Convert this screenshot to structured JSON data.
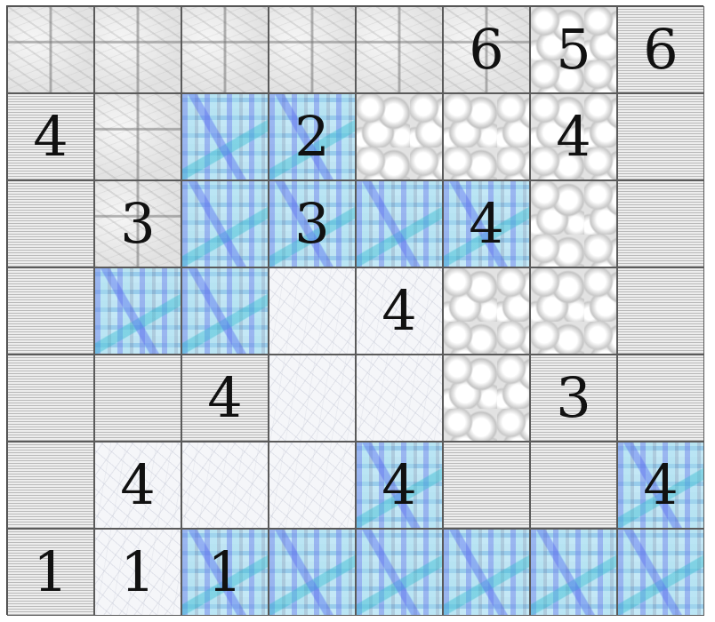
{
  "puzzle": {
    "rows": 7,
    "cols": 8,
    "textures": [
      "marble",
      "lines",
      "mosaic",
      "bumps",
      "frost"
    ],
    "grid": [
      [
        {
          "t": "marble",
          "n": ""
        },
        {
          "t": "marble",
          "n": ""
        },
        {
          "t": "marble",
          "n": ""
        },
        {
          "t": "marble",
          "n": ""
        },
        {
          "t": "marble",
          "n": ""
        },
        {
          "t": "marble",
          "n": "6"
        },
        {
          "t": "bumps",
          "n": "5"
        },
        {
          "t": "lines",
          "n": "6"
        }
      ],
      [
        {
          "t": "lines",
          "n": "4"
        },
        {
          "t": "marble",
          "n": ""
        },
        {
          "t": "mosaic",
          "n": ""
        },
        {
          "t": "mosaic",
          "n": "2"
        },
        {
          "t": "bumps",
          "n": ""
        },
        {
          "t": "bumps",
          "n": ""
        },
        {
          "t": "bumps",
          "n": "4"
        },
        {
          "t": "lines",
          "n": ""
        }
      ],
      [
        {
          "t": "lines",
          "n": ""
        },
        {
          "t": "marble",
          "n": "3"
        },
        {
          "t": "mosaic",
          "n": ""
        },
        {
          "t": "mosaic",
          "n": "3"
        },
        {
          "t": "mosaic",
          "n": ""
        },
        {
          "t": "mosaic",
          "n": "4"
        },
        {
          "t": "bumps",
          "n": ""
        },
        {
          "t": "lines",
          "n": ""
        }
      ],
      [
        {
          "t": "lines",
          "n": ""
        },
        {
          "t": "mosaic",
          "n": ""
        },
        {
          "t": "mosaic",
          "n": ""
        },
        {
          "t": "frost",
          "n": ""
        },
        {
          "t": "frost",
          "n": "4"
        },
        {
          "t": "bumps",
          "n": ""
        },
        {
          "t": "bumps",
          "n": ""
        },
        {
          "t": "lines",
          "n": ""
        }
      ],
      [
        {
          "t": "lines",
          "n": ""
        },
        {
          "t": "lines",
          "n": ""
        },
        {
          "t": "lines",
          "n": "4"
        },
        {
          "t": "frost",
          "n": ""
        },
        {
          "t": "frost",
          "n": ""
        },
        {
          "t": "bumps",
          "n": ""
        },
        {
          "t": "lines",
          "n": "3"
        },
        {
          "t": "lines",
          "n": ""
        }
      ],
      [
        {
          "t": "lines",
          "n": ""
        },
        {
          "t": "frost",
          "n": "4"
        },
        {
          "t": "frost",
          "n": ""
        },
        {
          "t": "frost",
          "n": ""
        },
        {
          "t": "mosaic",
          "n": "4"
        },
        {
          "t": "lines",
          "n": ""
        },
        {
          "t": "lines",
          "n": ""
        },
        {
          "t": "mosaic",
          "n": "4"
        }
      ],
      [
        {
          "t": "lines",
          "n": "1"
        },
        {
          "t": "frost",
          "n": "1"
        },
        {
          "t": "mosaic",
          "n": "1"
        },
        {
          "t": "mosaic",
          "n": ""
        },
        {
          "t": "mosaic",
          "n": ""
        },
        {
          "t": "mosaic",
          "n": ""
        },
        {
          "t": "mosaic",
          "n": ""
        },
        {
          "t": "mosaic",
          "n": ""
        }
      ]
    ]
  }
}
